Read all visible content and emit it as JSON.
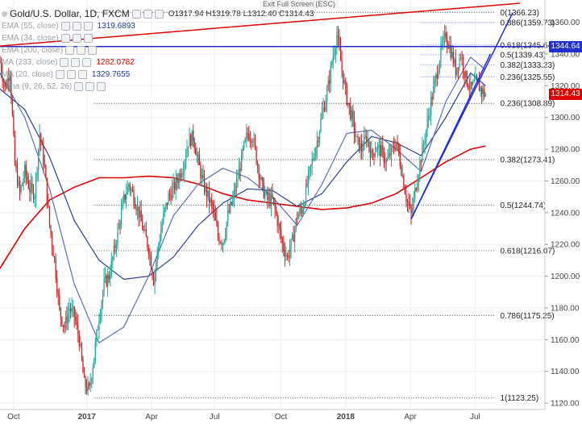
{
  "header": {
    "symbol": "Gold/U.S. Dollar, 1D, FXCM",
    "ohlc": "O1317.94  H1319.78  L1312.40  C1314.43",
    "fullscreen_hint": "Exit Full Screen (ESC)"
  },
  "legend": [
    {
      "name": "EMA (55, close)",
      "value": "1319.6893",
      "color": "#1a3a9e"
    },
    {
      "name": "EMA (34, close)",
      "value": "",
      "color": "#9aa0a6"
    },
    {
      "name": "EMA (200, close)",
      "value": "",
      "color": "#9aa0a6"
    },
    {
      "name": "MA (233, close)",
      "value": "1282.0782",
      "color": "#e00000"
    },
    {
      "name": "MA (20, close)",
      "value": "1329.7655",
      "color": "#1a3a9e"
    },
    {
      "name": "...ma (9, 26, 52, 26)",
      "value": "",
      "color": "#9aa0a6"
    }
  ],
  "colors": {
    "bull": "#26a69a",
    "bear": "#c62828",
    "ma233": "#e00000",
    "ema55": "#2c3e8f",
    "ma20": "#5a6fb0",
    "trend": "#1f2fd0",
    "fib": "#222222"
  },
  "price_tags": [
    {
      "value": "1344.64",
      "color": "#1f2fd0"
    },
    {
      "value": "1314.43",
      "color": "#e00000"
    }
  ],
  "chart_data": {
    "type": "candlestick",
    "title": "Gold/U.S. Dollar, 1D, FXCM",
    "ylim": [
      1116,
      1374
    ],
    "y_ticks": [
      1120,
      1140,
      1160,
      1180,
      1200,
      1220,
      1240,
      1260,
      1280,
      1300,
      1320,
      1340,
      1360
    ],
    "x_ticks": [
      "Oct",
      "2017",
      "Apr",
      "Jul",
      "Oct",
      "2018",
      "Apr",
      "Jul"
    ],
    "last_close": 1314.43,
    "fib_levels": [
      {
        "label": "0(1366.23)",
        "value": 1366.23
      },
      {
        "label": "0.236(1308.89)",
        "value": 1308.89
      },
      {
        "label": "0.382(1273.41)",
        "value": 1273.41
      },
      {
        "label": "0.5(1244.74)",
        "value": 1244.74
      },
      {
        "label": "0.618(1216.07)",
        "value": 1216.07
      },
      {
        "label": "0.786(1175.25)",
        "value": 1175.25
      },
      {
        "label": "1(1123.25)",
        "value": 1123.25
      }
    ],
    "fib_levels_minor": [
      {
        "label": "0.886(1359.73)",
        "value": 1359.73
      },
      {
        "label": "0.618(1345.64)",
        "value": 1345.64
      },
      {
        "label": "0.5(1339.43)",
        "value": 1339.43
      },
      {
        "label": "0.382(1333.23)",
        "value": 1333.23
      },
      {
        "label": "0.236(1325.55)",
        "value": 1325.55
      }
    ],
    "horizontal_line": 1344.64,
    "price_path": [
      [
        0,
        1335
      ],
      [
        4,
        1318
      ],
      [
        8,
        1330
      ],
      [
        12,
        1270
      ],
      [
        16,
        1252
      ],
      [
        20,
        1266
      ],
      [
        24,
        1255
      ],
      [
        28,
        1252
      ],
      [
        32,
        1290
      ],
      [
        36,
        1268
      ],
      [
        40,
        1232
      ],
      [
        44,
        1210
      ],
      [
        48,
        1178
      ],
      [
        52,
        1168
      ],
      [
        56,
        1180
      ],
      [
        60,
        1175
      ],
      [
        64,
        1160
      ],
      [
        68,
        1132
      ],
      [
        72,
        1128
      ],
      [
        76,
        1150
      ],
      [
        80,
        1175
      ],
      [
        84,
        1195
      ],
      [
        88,
        1200
      ],
      [
        92,
        1215
      ],
      [
        96,
        1232
      ],
      [
        100,
        1248
      ],
      [
        104,
        1258
      ],
      [
        108,
        1250
      ],
      [
        112,
        1240
      ],
      [
        116,
        1228
      ],
      [
        120,
        1218
      ],
      [
        124,
        1198
      ],
      [
        128,
        1220
      ],
      [
        132,
        1238
      ],
      [
        136,
        1250
      ],
      [
        140,
        1255
      ],
      [
        144,
        1262
      ],
      [
        148,
        1270
      ],
      [
        152,
        1285
      ],
      [
        156,
        1288
      ],
      [
        160,
        1272
      ],
      [
        164,
        1258
      ],
      [
        168,
        1250
      ],
      [
        172,
        1242
      ],
      [
        176,
        1225
      ],
      [
        180,
        1222
      ],
      [
        184,
        1238
      ],
      [
        188,
        1248
      ],
      [
        192,
        1262
      ],
      [
        196,
        1278
      ],
      [
        200,
        1290
      ],
      [
        204,
        1288
      ],
      [
        208,
        1270
      ],
      [
        212,
        1255
      ],
      [
        216,
        1248
      ],
      [
        220,
        1248
      ],
      [
        224,
        1235
      ],
      [
        228,
        1220
      ],
      [
        232,
        1212
      ],
      [
        236,
        1222
      ],
      [
        240,
        1238
      ],
      [
        244,
        1242
      ],
      [
        248,
        1258
      ],
      [
        252,
        1272
      ],
      [
        256,
        1285
      ],
      [
        260,
        1302
      ],
      [
        264,
        1315
      ],
      [
        268,
        1335
      ],
      [
        272,
        1352
      ],
      [
        276,
        1330
      ],
      [
        280,
        1312
      ],
      [
        284,
        1300
      ],
      [
        288,
        1285
      ],
      [
        292,
        1280
      ],
      [
        296,
        1288
      ],
      [
        300,
        1276
      ],
      [
        304,
        1282
      ],
      [
        308,
        1278
      ],
      [
        312,
        1272
      ],
      [
        316,
        1278
      ],
      [
        320,
        1285
      ],
      [
        324,
        1268
      ],
      [
        328,
        1250
      ],
      [
        332,
        1238
      ],
      [
        336,
        1258
      ],
      [
        340,
        1275
      ],
      [
        344,
        1292
      ],
      [
        348,
        1310
      ],
      [
        352,
        1325
      ],
      [
        356,
        1342
      ],
      [
        360,
        1352
      ],
      [
        364,
        1342
      ],
      [
        368,
        1330
      ],
      [
        372,
        1340
      ],
      [
        376,
        1325
      ],
      [
        380,
        1318
      ],
      [
        384,
        1322
      ],
      [
        388,
        1318
      ],
      [
        392,
        1314
      ]
    ],
    "ma233_path": [
      [
        0,
        1205
      ],
      [
        20,
        1230
      ],
      [
        40,
        1248
      ],
      [
        60,
        1256
      ],
      [
        80,
        1262
      ],
      [
        100,
        1262
      ],
      [
        120,
        1263
      ],
      [
        140,
        1262
      ],
      [
        160,
        1258
      ],
      [
        180,
        1252
      ],
      [
        200,
        1248
      ],
      [
        220,
        1246
      ],
      [
        240,
        1244
      ],
      [
        260,
        1242
      ],
      [
        280,
        1243
      ],
      [
        300,
        1246
      ],
      [
        320,
        1252
      ],
      [
        340,
        1262
      ],
      [
        360,
        1272
      ],
      [
        380,
        1280
      ],
      [
        392,
        1282
      ]
    ],
    "ema55_path": [
      [
        0,
        1318
      ],
      [
        20,
        1305
      ],
      [
        40,
        1275
      ],
      [
        60,
        1235
      ],
      [
        80,
        1210
      ],
      [
        100,
        1198
      ],
      [
        120,
        1200
      ],
      [
        140,
        1212
      ],
      [
        160,
        1232
      ],
      [
        180,
        1246
      ],
      [
        200,
        1255
      ],
      [
        220,
        1254
      ],
      [
        240,
        1244
      ],
      [
        260,
        1252
      ],
      [
        280,
        1272
      ],
      [
        300,
        1288
      ],
      [
        320,
        1284
      ],
      [
        340,
        1276
      ],
      [
        360,
        1300
      ],
      [
        380,
        1328
      ],
      [
        392,
        1320
      ]
    ],
    "ma20_path": [
      [
        0,
        1328
      ],
      [
        20,
        1300
      ],
      [
        40,
        1255
      ],
      [
        60,
        1195
      ],
      [
        80,
        1158
      ],
      [
        100,
        1168
      ],
      [
        120,
        1200
      ],
      [
        140,
        1238
      ],
      [
        160,
        1258
      ],
      [
        180,
        1268
      ],
      [
        200,
        1262
      ],
      [
        220,
        1250
      ],
      [
        240,
        1232
      ],
      [
        260,
        1258
      ],
      [
        280,
        1290
      ],
      [
        300,
        1292
      ],
      [
        320,
        1280
      ],
      [
        340,
        1266
      ],
      [
        360,
        1310
      ],
      [
        380,
        1338
      ],
      [
        392,
        1330
      ]
    ],
    "trendlines": [
      {
        "from": [
          0,
          1345
        ],
        "to": [
          420,
          1372
        ],
        "color": "#e00000"
      },
      {
        "from": [
          332,
          1236
        ],
        "to": [
          396,
          1340
        ],
        "color": "#1f2fd0"
      },
      {
        "from": [
          332,
          1236
        ],
        "to": [
          414,
          1366
        ],
        "color": "#1f2fd0"
      }
    ]
  }
}
